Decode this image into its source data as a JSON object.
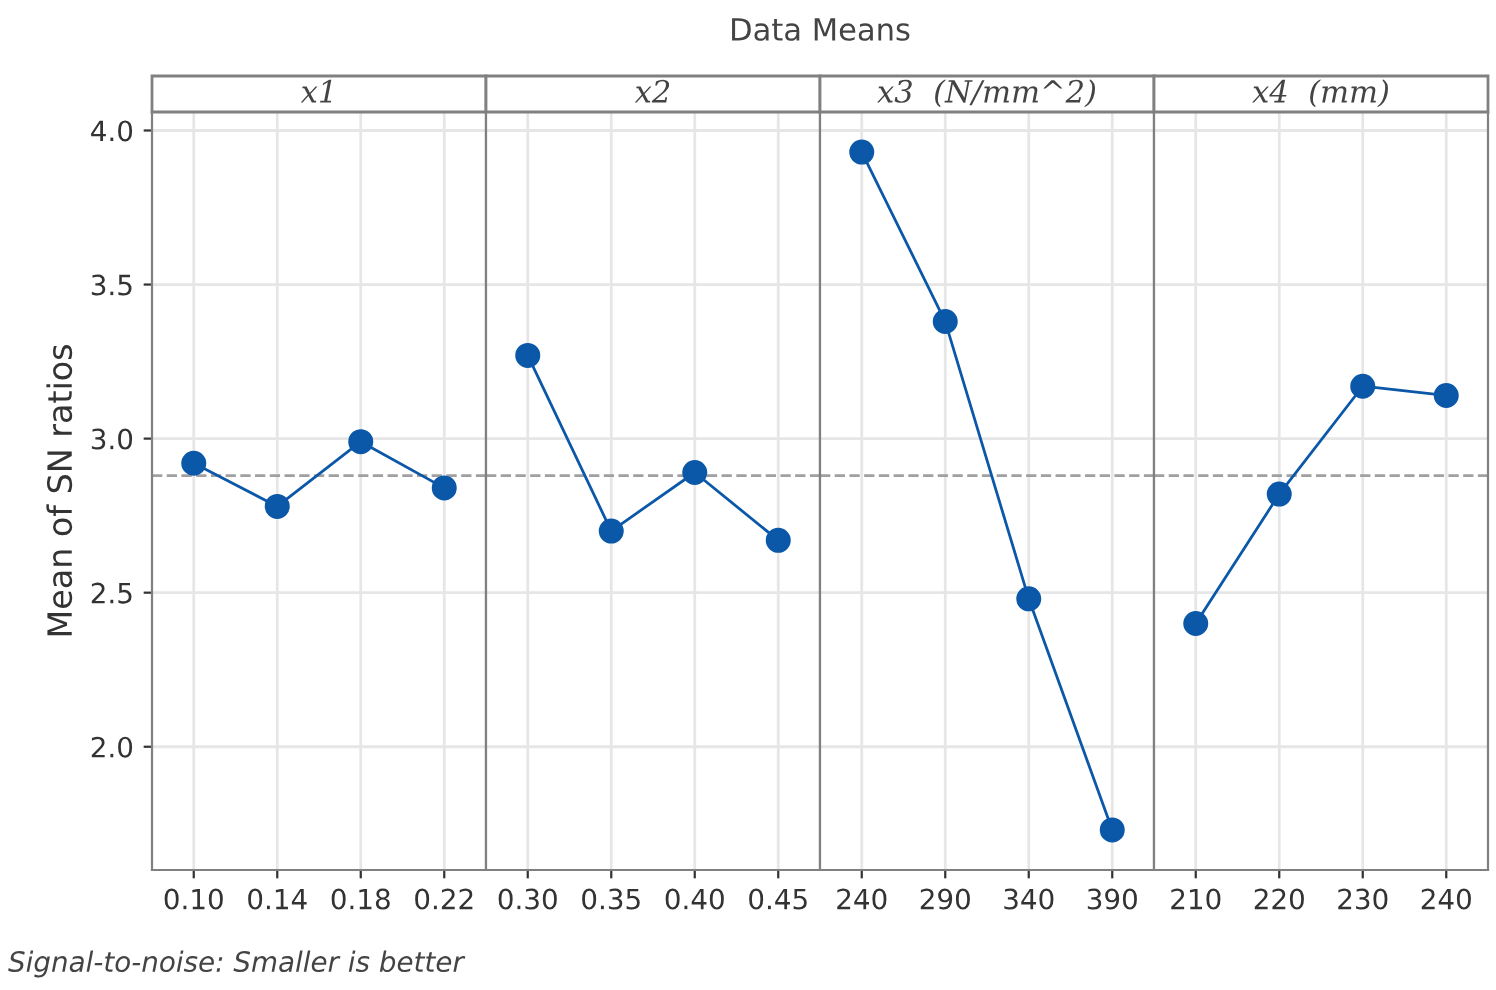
{
  "chart_data": [
    {
      "type": "line",
      "xlabel": "x1",
      "ylabel": "Mean of SN ratios",
      "annotations": [
        "Signal-to-noise: Smaller is better"
      ],
      "categories": [
        "0.10",
        "0.14",
        "0.18",
        "0.22"
      ],
      "series": [
        {
          "color": "#0b57a8",
          "values": [
            2.92,
            2.78,
            2.99,
            2.84
          ]
        }
      ],
      "ylim": [
        1.6,
        4.06
      ],
      "yticks": [
        {
          "value": 2,
          "label": "2.0"
        },
        2.5,
        {
          "value": 3,
          "label": "3.0"
        },
        3.5,
        {
          "value": 4,
          "label": "4.0"
        }
      ],
      "ref_lines": [
        {
          "axis": "y",
          "value": 2.88,
          "color": "#a0a0a0",
          "line_style": "dashed"
        }
      ],
      "grid": true,
      "marker": "circle",
      "line_style": "solid"
    },
    {
      "type": "line",
      "title": "Data Means",
      "xlabel": "x2",
      "categories": [
        "0.30",
        "0.35",
        "0.40",
        "0.45"
      ],
      "series": [
        {
          "color": "#0b57a8",
          "values": [
            3.27,
            2.7,
            2.89,
            2.67
          ]
        }
      ],
      "ylim": [
        1.6,
        4.06
      ],
      "yticks": [
        {
          "value": 2,
          "label": null
        },
        {
          "value": 2.5,
          "label": null
        },
        {
          "value": 3,
          "label": null
        },
        {
          "value": 3.5,
          "label": null
        },
        {
          "value": 4,
          "label": null
        }
      ],
      "tick_labels": "x",
      "ref_lines": [
        {
          "axis": "y",
          "value": 2.88,
          "color": "#a0a0a0",
          "line_style": "dashed"
        }
      ],
      "grid": true,
      "marker": "circle",
      "line_style": "solid"
    },
    {
      "type": "line",
      "xlabel": "x3  (N/mm^2)",
      "categories": [
        "240",
        "290",
        "340",
        "390"
      ],
      "series": [
        {
          "color": "#0b57a8",
          "values": [
            3.93,
            3.38,
            2.48,
            1.73
          ]
        }
      ],
      "ylim": [
        1.6,
        4.06
      ],
      "yticks": [
        {
          "value": 2,
          "label": null
        },
        {
          "value": 2.5,
          "label": null
        },
        {
          "value": 3,
          "label": null
        },
        {
          "value": 3.5,
          "label": null
        },
        {
          "value": 4,
          "label": null
        }
      ],
      "tick_labels": "x",
      "ref_lines": [
        {
          "axis": "y",
          "value": 2.88,
          "color": "#a0a0a0",
          "line_style": "dashed"
        }
      ],
      "grid": true,
      "marker": "circle",
      "line_style": "solid"
    },
    {
      "type": "line",
      "xlabel": "x4  (mm)",
      "categories": [
        "210",
        "220",
        "230",
        "240"
      ],
      "series": [
        {
          "color": "#0b57a8",
          "values": [
            2.4,
            2.82,
            3.17,
            3.14
          ]
        }
      ],
      "ylim": [
        1.6,
        4.06
      ],
      "yticks": [
        {
          "value": 2,
          "label": null
        },
        {
          "value": 2.5,
          "label": null
        },
        {
          "value": 3,
          "label": null
        },
        {
          "value": 3.5,
          "label": null
        },
        {
          "value": 4,
          "label": null
        }
      ],
      "tick_labels": "x",
      "ref_lines": [
        {
          "axis": "y",
          "value": 2.88,
          "color": "#a0a0a0",
          "line_style": "dashed"
        }
      ],
      "grid": true,
      "marker": "circle",
      "line_style": "solid"
    }
  ]
}
